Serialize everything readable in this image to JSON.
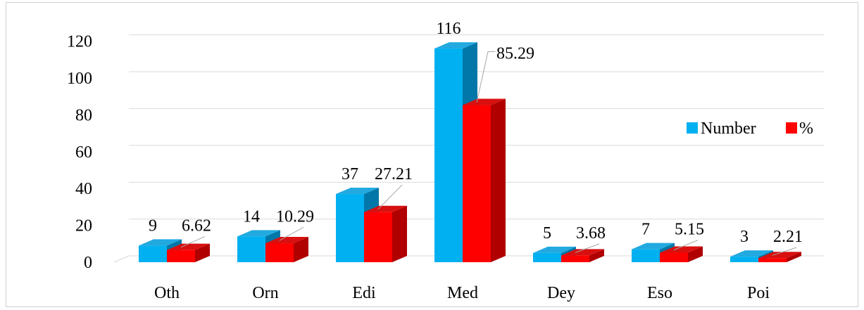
{
  "chart_data": {
    "type": "bar",
    "title": "",
    "xlabel": "",
    "ylabel": "",
    "categories": [
      "Oth",
      "Orn",
      "Edi",
      "Med",
      "Dey",
      "Eso",
      "Poi"
    ],
    "series": [
      {
        "name": "Number",
        "values": [
          9,
          14,
          37,
          116,
          5,
          7,
          3
        ],
        "labels": [
          "9",
          "14",
          "37",
          "116",
          "5",
          "7",
          "3"
        ]
      },
      {
        "name": "%",
        "values": [
          6.62,
          10.29,
          27.21,
          85.29,
          3.68,
          5.15,
          2.21
        ],
        "labels": [
          "6.62",
          "10.29",
          "27.21",
          "85.29",
          "3.68",
          "5.15",
          "2.21"
        ]
      }
    ],
    "ylim": [
      0,
      120
    ],
    "yticks": [
      0,
      20,
      40,
      60,
      80,
      100,
      120
    ],
    "grid": true,
    "style": "3d-clustered-column",
    "legend_position": "right",
    "colors": {
      "Number": {
        "front": "#00b0f0",
        "side": "#0077a8",
        "top": "#22a9e0"
      },
      "%": {
        "front": "#ff0000",
        "side": "#b00000",
        "top": "#d81010"
      },
      "grid": "#d9d9d9",
      "leader": "#a6a6a6"
    }
  }
}
